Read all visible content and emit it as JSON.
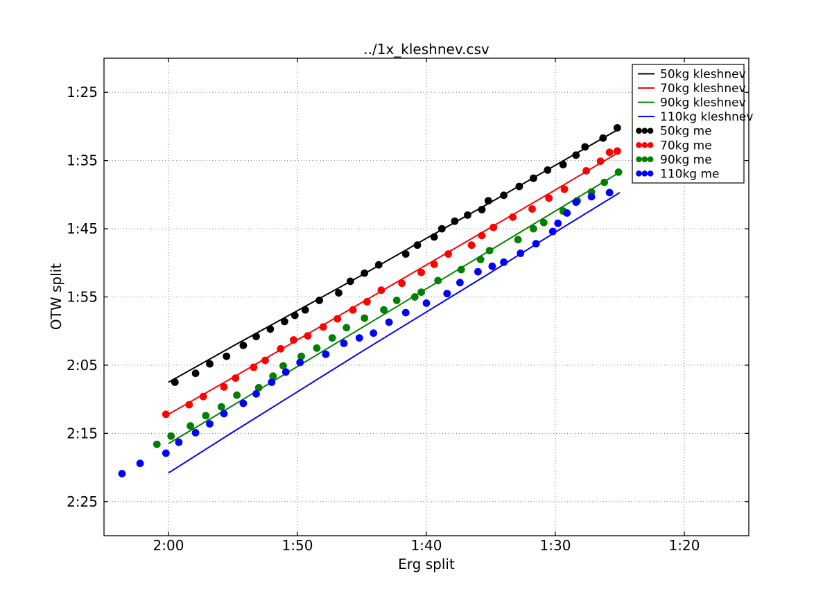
{
  "figure": {
    "title": "../1x_kleshnev.csv",
    "xlabel": "Erg split",
    "ylabel": "OTW split"
  },
  "chart_data": {
    "type": "line+scatter",
    "title": "../1x_kleshnev.csv",
    "xlabel": "Erg split",
    "ylabel": "OTW split",
    "units": "seconds per 500 m",
    "x_axis": {
      "label": "Erg split",
      "range_s": [
        125,
        75
      ],
      "reversed": true,
      "grid": "dotted",
      "ticks": [
        {
          "s": 120,
          "label": "2:00"
        },
        {
          "s": 110,
          "label": "1:50"
        },
        {
          "s": 100,
          "label": "1:40"
        },
        {
          "s": 90,
          "label": "1:30"
        },
        {
          "s": 80,
          "label": "1:20"
        }
      ]
    },
    "y_axis": {
      "label": "OTW split",
      "range_s": [
        80,
        150
      ],
      "inverted": true,
      "grid": "dotted",
      "ticks": [
        {
          "s": 85,
          "label": "1:25"
        },
        {
          "s": 95,
          "label": "1:35"
        },
        {
          "s": 105,
          "label": "1:45"
        },
        {
          "s": 115,
          "label": "1:55"
        },
        {
          "s": 125,
          "label": "2:05"
        },
        {
          "s": 135,
          "label": "2:15"
        },
        {
          "s": 145,
          "label": "2:25"
        }
      ]
    },
    "legend": {
      "location": "upper right",
      "entries": [
        "50kg kleshnev",
        "70kg kleshnev",
        "90kg kleshnev",
        "110kg kleshnev",
        "50kg me",
        "70kg me",
        "90kg me",
        "110kg me"
      ]
    },
    "series": [
      {
        "name": "50kg kleshnev",
        "style": "line",
        "color": "#000000",
        "points_erg_otw_s": [
          [
            120,
            127.5
          ],
          [
            115,
            122.2
          ],
          [
            110,
            117.0
          ],
          [
            105,
            111.8
          ],
          [
            100,
            106.4
          ],
          [
            95,
            101.1
          ],
          [
            90,
            95.7
          ],
          [
            85,
            90.3
          ]
        ]
      },
      {
        "name": "70kg kleshnev",
        "style": "line",
        "color": "#ff0000",
        "points_erg_otw_s": [
          [
            120,
            132.2
          ],
          [
            115,
            126.8
          ],
          [
            110,
            121.3
          ],
          [
            105,
            115.8
          ],
          [
            100,
            110.3
          ],
          [
            95,
            104.8
          ],
          [
            90,
            99.3
          ],
          [
            85,
            93.7
          ]
        ]
      },
      {
        "name": "90kg kleshnev",
        "style": "line",
        "color": "#008000",
        "points_erg_otw_s": [
          [
            120,
            136.5
          ],
          [
            115,
            130.9
          ],
          [
            110,
            125.2
          ],
          [
            105,
            119.5
          ],
          [
            100,
            113.8
          ],
          [
            95,
            108.1
          ],
          [
            90,
            102.4
          ],
          [
            85,
            96.7
          ]
        ]
      },
      {
        "name": "110kg kleshnev",
        "style": "line",
        "color": "#0000ff",
        "points_erg_otw_s": [
          [
            120,
            140.8
          ],
          [
            115,
            134.8
          ],
          [
            110,
            128.9
          ],
          [
            105,
            123.0
          ],
          [
            100,
            117.2
          ],
          [
            95,
            111.4
          ],
          [
            90,
            105.5
          ],
          [
            85,
            99.7
          ]
        ]
      },
      {
        "name": "50kg me",
        "style": "scatter",
        "color": "#000000",
        "points_erg_otw_s": [
          [
            119.5,
            127.5
          ],
          [
            117.9,
            126.2
          ],
          [
            116.8,
            124.8
          ],
          [
            115.5,
            123.7
          ],
          [
            114.2,
            122.1
          ],
          [
            113.2,
            120.8
          ],
          [
            112.1,
            119.7
          ],
          [
            111.0,
            118.6
          ],
          [
            110.2,
            117.7
          ],
          [
            109.4,
            116.9
          ],
          [
            108.3,
            115.5
          ],
          [
            106.8,
            114.4
          ],
          [
            105.9,
            112.7
          ],
          [
            104.8,
            111.5
          ],
          [
            103.7,
            110.3
          ],
          [
            101.6,
            108.7
          ],
          [
            100.7,
            107.4
          ],
          [
            99.4,
            106.2
          ],
          [
            98.8,
            105.0
          ],
          [
            97.8,
            103.9
          ],
          [
            96.8,
            103.0
          ],
          [
            95.7,
            102.2
          ],
          [
            95.2,
            100.9
          ],
          [
            94.0,
            100.1
          ],
          [
            92.8,
            98.8
          ],
          [
            91.7,
            97.6
          ],
          [
            90.6,
            96.4
          ],
          [
            89.4,
            95.6
          ],
          [
            88.4,
            94.2
          ],
          [
            87.7,
            93.0
          ],
          [
            86.3,
            91.7
          ],
          [
            85.2,
            90.2
          ]
        ]
      },
      {
        "name": "70kg me",
        "style": "scatter",
        "color": "#ff0000",
        "points_erg_otw_s": [
          [
            120.2,
            132.2
          ],
          [
            118.4,
            130.8
          ],
          [
            117.3,
            129.6
          ],
          [
            115.7,
            128.2
          ],
          [
            114.8,
            126.9
          ],
          [
            113.4,
            125.3
          ],
          [
            112.5,
            124.3
          ],
          [
            111.3,
            122.6
          ],
          [
            110.3,
            121.3
          ],
          [
            109.2,
            120.7
          ],
          [
            108.0,
            119.4
          ],
          [
            106.9,
            118.2
          ],
          [
            105.7,
            116.9
          ],
          [
            104.6,
            115.7
          ],
          [
            103.5,
            114.0
          ],
          [
            101.9,
            113.0
          ],
          [
            100.4,
            111.4
          ],
          [
            99.4,
            110.2
          ],
          [
            98.3,
            108.7
          ],
          [
            96.5,
            107.4
          ],
          [
            95.7,
            106.0
          ],
          [
            94.8,
            104.8
          ],
          [
            93.3,
            103.3
          ],
          [
            91.8,
            102.1
          ],
          [
            90.5,
            100.5
          ],
          [
            89.3,
            99.2
          ],
          [
            87.6,
            96.5
          ],
          [
            86.5,
            95.1
          ],
          [
            85.8,
            93.8
          ],
          [
            85.2,
            93.6
          ]
        ]
      },
      {
        "name": "90kg me",
        "style": "scatter",
        "color": "#008000",
        "points_erg_otw_s": [
          [
            120.9,
            136.6
          ],
          [
            119.8,
            135.4
          ],
          [
            118.3,
            133.9
          ],
          [
            117.1,
            132.4
          ],
          [
            115.9,
            131.1
          ],
          [
            114.7,
            129.4
          ],
          [
            113.0,
            128.3
          ],
          [
            111.9,
            126.6
          ],
          [
            111.1,
            125.1
          ],
          [
            109.7,
            123.7
          ],
          [
            108.5,
            122.5
          ],
          [
            107.3,
            121.0
          ],
          [
            106.2,
            119.5
          ],
          [
            104.8,
            118.1
          ],
          [
            103.3,
            116.9
          ],
          [
            102.3,
            115.5
          ],
          [
            100.9,
            115.0
          ],
          [
            100.4,
            114.3
          ],
          [
            99.1,
            112.6
          ],
          [
            97.3,
            111.0
          ],
          [
            95.8,
            109.5
          ],
          [
            95.1,
            108.2
          ],
          [
            92.9,
            106.6
          ],
          [
            91.7,
            105.0
          ],
          [
            90.9,
            104.1
          ],
          [
            89.4,
            102.4
          ],
          [
            88.3,
            100.9
          ],
          [
            87.2,
            99.6
          ],
          [
            86.2,
            98.2
          ],
          [
            85.1,
            96.7
          ]
        ]
      },
      {
        "name": "110kg me",
        "style": "scatter",
        "color": "#0000ff",
        "points_erg_otw_s": [
          [
            123.6,
            140.9
          ],
          [
            122.2,
            139.4
          ],
          [
            120.2,
            137.9
          ],
          [
            119.2,
            136.3
          ],
          [
            117.9,
            134.9
          ],
          [
            116.8,
            133.6
          ],
          [
            115.7,
            132.1
          ],
          [
            114.2,
            130.6
          ],
          [
            113.2,
            129.2
          ],
          [
            112.0,
            127.5
          ],
          [
            110.9,
            126.0
          ],
          [
            109.8,
            124.6
          ],
          [
            107.8,
            123.4
          ],
          [
            106.4,
            121.8
          ],
          [
            105.2,
            121.0
          ],
          [
            104.1,
            120.3
          ],
          [
            102.9,
            118.7
          ],
          [
            101.6,
            117.3
          ],
          [
            100.0,
            115.9
          ],
          [
            98.4,
            114.5
          ],
          [
            97.4,
            112.9
          ],
          [
            96.0,
            111.3
          ],
          [
            94.9,
            110.5
          ],
          [
            94.0,
            109.9
          ],
          [
            92.7,
            108.6
          ],
          [
            91.5,
            107.2
          ],
          [
            90.2,
            105.4
          ],
          [
            89.8,
            104.2
          ],
          [
            89.1,
            102.7
          ],
          [
            88.4,
            101.1
          ],
          [
            87.2,
            100.3
          ],
          [
            85.8,
            99.7
          ]
        ]
      }
    ]
  }
}
